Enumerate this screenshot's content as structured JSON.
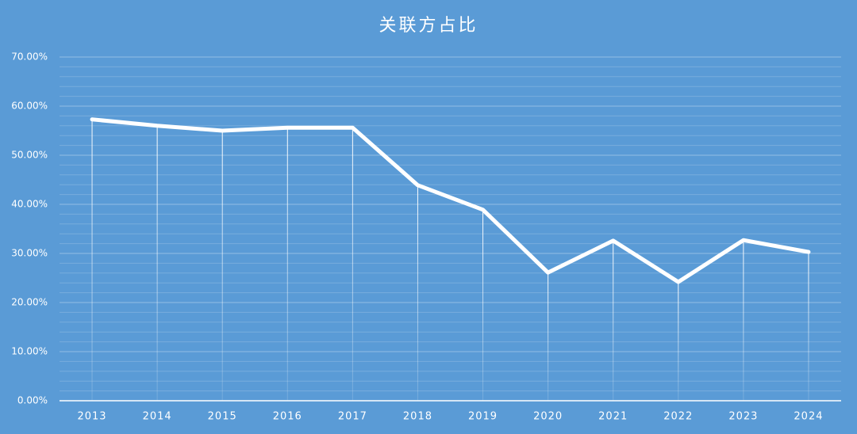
{
  "chart_data": {
    "type": "line",
    "title": "关联方占比",
    "categories": [
      "2013",
      "2014",
      "2015",
      "2016",
      "2017",
      "2018",
      "2019",
      "2020",
      "2021",
      "2022",
      "2023",
      "2024"
    ],
    "series": [
      {
        "name": "关联方占比",
        "color": "#ffffff",
        "values": [
          57.3,
          56.0,
          55.0,
          55.6,
          55.6,
          43.9,
          38.9,
          26.1,
          32.6,
          24.2,
          32.7,
          30.3
        ]
      }
    ],
    "ylim": [
      0,
      70
    ],
    "yticks": [
      {
        "value": 0,
        "label": "0.00%"
      },
      {
        "value": 10,
        "label": "10.00%"
      },
      {
        "value": 20,
        "label": "20.00%"
      },
      {
        "value": 30,
        "label": "30.00%"
      },
      {
        "value": 40,
        "label": "40.00%"
      },
      {
        "value": 50,
        "label": "50.00%"
      },
      {
        "value": 60,
        "label": "60.00%"
      },
      {
        "value": 70,
        "label": "70.00%"
      }
    ],
    "grid": true
  }
}
